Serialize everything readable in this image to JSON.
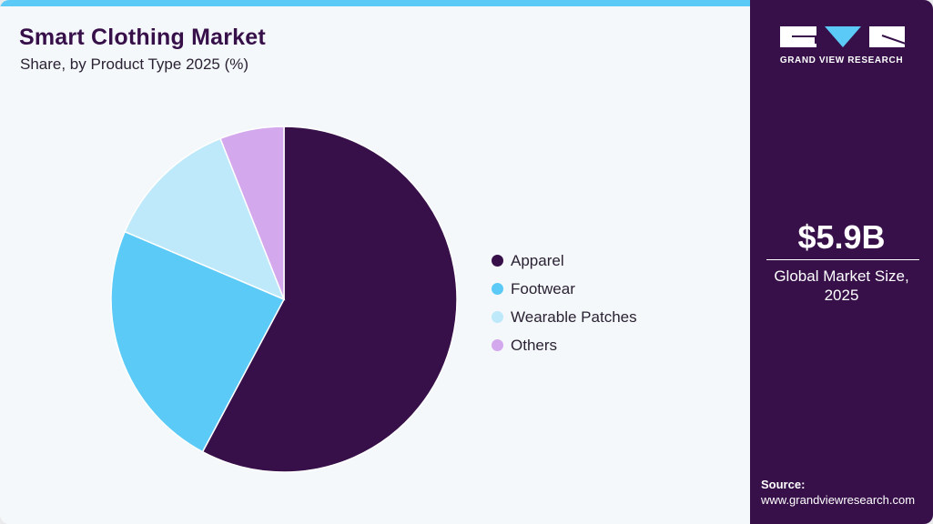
{
  "header": {
    "title": "Smart Clothing Market",
    "subtitle": "Share, by Product Type 2025 (%)"
  },
  "legend": [
    {
      "label": "Apparel",
      "color": "#37104a"
    },
    {
      "label": "Footwear",
      "color": "#5ccaf6"
    },
    {
      "label": "Wearable Patches",
      "color": "#bde9fa"
    },
    {
      "label": "Others",
      "color": "#d4a8ec"
    }
  ],
  "sidebar": {
    "logo_text": "GRAND VIEW RESEARCH",
    "market_size": "$5.9B",
    "market_label_line1": "Global Market Size,",
    "market_label_line2": "2025",
    "source_label": "Source:",
    "source_url": "www.grandviewresearch.com"
  },
  "colors": {
    "accent": "#5ccaf6",
    "brand": "#37104a",
    "background": "#f4f8fb"
  },
  "chart_data": {
    "type": "pie",
    "title": "Smart Clothing Market",
    "subtitle": "Share, by Product Type 2025 (%)",
    "categories": [
      "Apparel",
      "Footwear",
      "Wearable Patches",
      "Others"
    ],
    "values": [
      57.8,
      23.6,
      12.6,
      6.0
    ],
    "colors": [
      "#37104a",
      "#5ccaf6",
      "#bde9fa",
      "#d4a8ec"
    ],
    "legend_position": "right",
    "start_angle": "top, clockwise"
  }
}
